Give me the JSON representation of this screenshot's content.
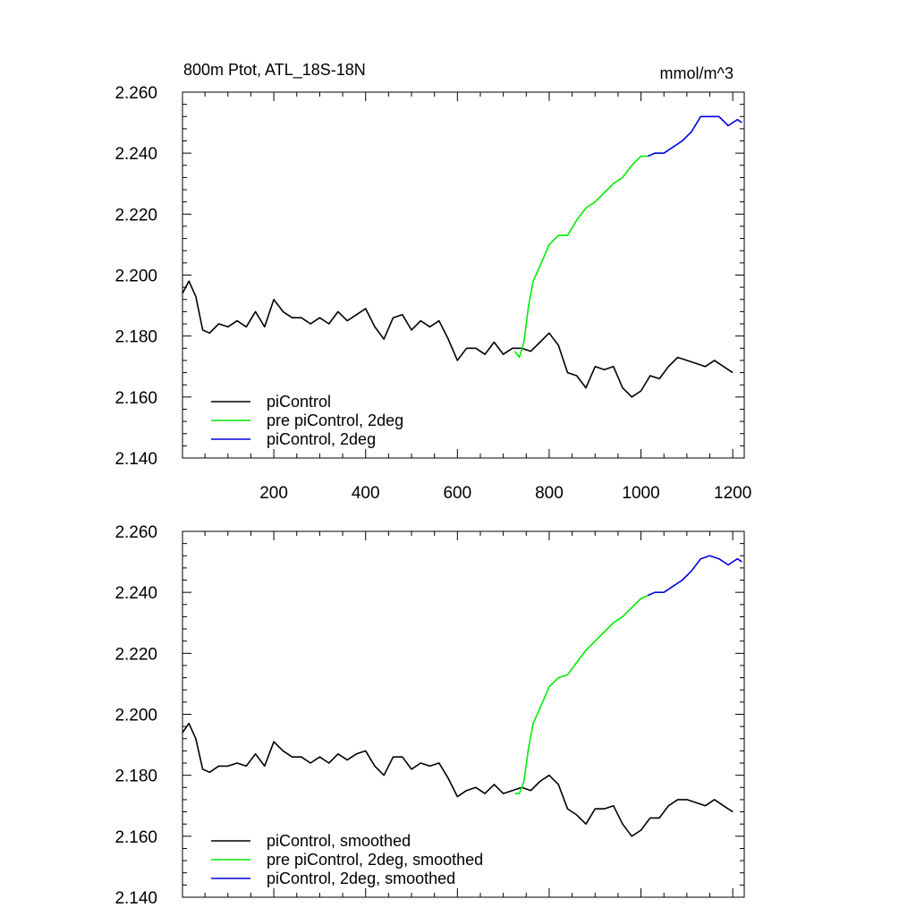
{
  "title_left": "800m Ptot, ATL_18S-18N",
  "title_right": "mmol/m^3",
  "colors": {
    "piControl": "#000000",
    "pre_piControl_2deg": "#00ee00",
    "piControl_2deg": "#0000dd"
  },
  "chart_data": [
    {
      "type": "line",
      "title": "800m Ptot, ATL_18S-18N",
      "units": "mmol/m^3",
      "xlim": [
        1,
        1225
      ],
      "ylim": [
        2.14,
        2.26
      ],
      "yticks": [
        "2.140",
        "2.160",
        "2.180",
        "2.200",
        "2.220",
        "2.240",
        "2.260"
      ],
      "xticks": [
        "200",
        "400",
        "600",
        "800",
        "1000",
        "1200"
      ],
      "legend_position": "bottom-left",
      "series": [
        {
          "name": "piControl",
          "color": "#000000",
          "x": [
            1,
            15,
            30,
            45,
            60,
            80,
            100,
            120,
            140,
            160,
            180,
            200,
            220,
            240,
            260,
            280,
            300,
            320,
            340,
            360,
            380,
            400,
            420,
            440,
            460,
            480,
            500,
            520,
            540,
            560,
            580,
            600,
            620,
            640,
            660,
            680,
            700,
            720,
            740,
            760,
            780,
            800,
            820,
            840,
            860,
            880,
            900,
            920,
            940,
            960,
            980,
            1000,
            1020,
            1040,
            1060,
            1080,
            1100,
            1120,
            1140,
            1160,
            1180,
            1200
          ],
          "values": [
            2.194,
            2.198,
            2.193,
            2.182,
            2.181,
            2.184,
            2.183,
            2.185,
            2.183,
            2.188,
            2.183,
            2.192,
            2.188,
            2.186,
            2.186,
            2.184,
            2.186,
            2.184,
            2.188,
            2.185,
            2.187,
            2.189,
            2.183,
            2.179,
            2.186,
            2.187,
            2.182,
            2.185,
            2.183,
            2.185,
            2.179,
            2.172,
            2.176,
            2.176,
            2.174,
            2.178,
            2.174,
            2.176,
            2.176,
            2.175,
            2.178,
            2.181,
            2.177,
            2.168,
            2.167,
            2.163,
            2.17,
            2.169,
            2.17,
            2.163,
            2.16,
            2.162,
            2.167,
            2.166,
            2.17,
            2.173,
            2.172,
            2.171,
            2.17,
            2.172,
            2.17,
            2.168
          ]
        },
        {
          "name": "pre piControl, 2deg",
          "color": "#00ee00",
          "x": [
            725,
            735,
            745,
            755,
            765,
            780,
            800,
            820,
            840,
            860,
            880,
            900,
            920,
            940,
            960,
            980,
            1000,
            1015
          ],
          "values": [
            2.175,
            2.173,
            2.178,
            2.19,
            2.198,
            2.203,
            2.21,
            2.213,
            2.213,
            2.218,
            2.222,
            2.224,
            2.227,
            2.23,
            2.232,
            2.236,
            2.239,
            2.239
          ]
        },
        {
          "name": "piControl, 2deg",
          "color": "#0000dd",
          "x": [
            1015,
            1030,
            1050,
            1070,
            1090,
            1110,
            1130,
            1150,
            1170,
            1190,
            1210,
            1220
          ],
          "values": [
            2.239,
            2.24,
            2.24,
            2.242,
            2.244,
            2.247,
            2.252,
            2.252,
            2.252,
            2.249,
            2.251,
            2.25
          ]
        }
      ]
    },
    {
      "type": "line",
      "xlim": [
        1,
        1225
      ],
      "ylim": [
        2.14,
        2.26
      ],
      "yticks": [
        "2.140",
        "2.160",
        "2.180",
        "2.200",
        "2.220",
        "2.240",
        "2.260"
      ],
      "xticks": [],
      "legend_position": "bottom-left",
      "series": [
        {
          "name": "piControl, smoothed",
          "color": "#000000",
          "x": [
            1,
            15,
            30,
            45,
            60,
            80,
            100,
            120,
            140,
            160,
            180,
            200,
            220,
            240,
            260,
            280,
            300,
            320,
            340,
            360,
            380,
            400,
            420,
            440,
            460,
            480,
            500,
            520,
            540,
            560,
            580,
            600,
            620,
            640,
            660,
            680,
            700,
            720,
            740,
            760,
            780,
            800,
            820,
            840,
            860,
            880,
            900,
            920,
            940,
            960,
            980,
            1000,
            1020,
            1040,
            1060,
            1080,
            1100,
            1120,
            1140,
            1160,
            1180,
            1200
          ],
          "values": [
            2.194,
            2.197,
            2.192,
            2.182,
            2.181,
            2.183,
            2.183,
            2.184,
            2.183,
            2.187,
            2.183,
            2.191,
            2.188,
            2.186,
            2.186,
            2.184,
            2.186,
            2.184,
            2.187,
            2.185,
            2.187,
            2.188,
            2.183,
            2.18,
            2.186,
            2.186,
            2.182,
            2.184,
            2.183,
            2.184,
            2.179,
            2.173,
            2.175,
            2.176,
            2.174,
            2.177,
            2.174,
            2.175,
            2.176,
            2.175,
            2.178,
            2.18,
            2.177,
            2.169,
            2.167,
            2.164,
            2.169,
            2.169,
            2.17,
            2.164,
            2.16,
            2.162,
            2.166,
            2.166,
            2.17,
            2.172,
            2.172,
            2.171,
            2.17,
            2.172,
            2.17,
            2.168
          ]
        },
        {
          "name": "pre piControl, 2deg, smoothed",
          "color": "#00ee00",
          "x": [
            725,
            735,
            745,
            755,
            765,
            780,
            800,
            820,
            840,
            860,
            880,
            900,
            920,
            940,
            960,
            980,
            1000,
            1015
          ],
          "values": [
            2.174,
            2.174,
            2.178,
            2.189,
            2.197,
            2.202,
            2.209,
            2.212,
            2.213,
            2.217,
            2.221,
            2.224,
            2.227,
            2.23,
            2.232,
            2.235,
            2.238,
            2.239
          ]
        },
        {
          "name": "piControl, 2deg, smoothed",
          "color": "#0000dd",
          "x": [
            1015,
            1030,
            1050,
            1070,
            1090,
            1110,
            1130,
            1150,
            1170,
            1190,
            1210,
            1220
          ],
          "values": [
            2.239,
            2.24,
            2.24,
            2.242,
            2.244,
            2.247,
            2.251,
            2.252,
            2.251,
            2.249,
            2.251,
            2.25
          ]
        }
      ]
    }
  ]
}
